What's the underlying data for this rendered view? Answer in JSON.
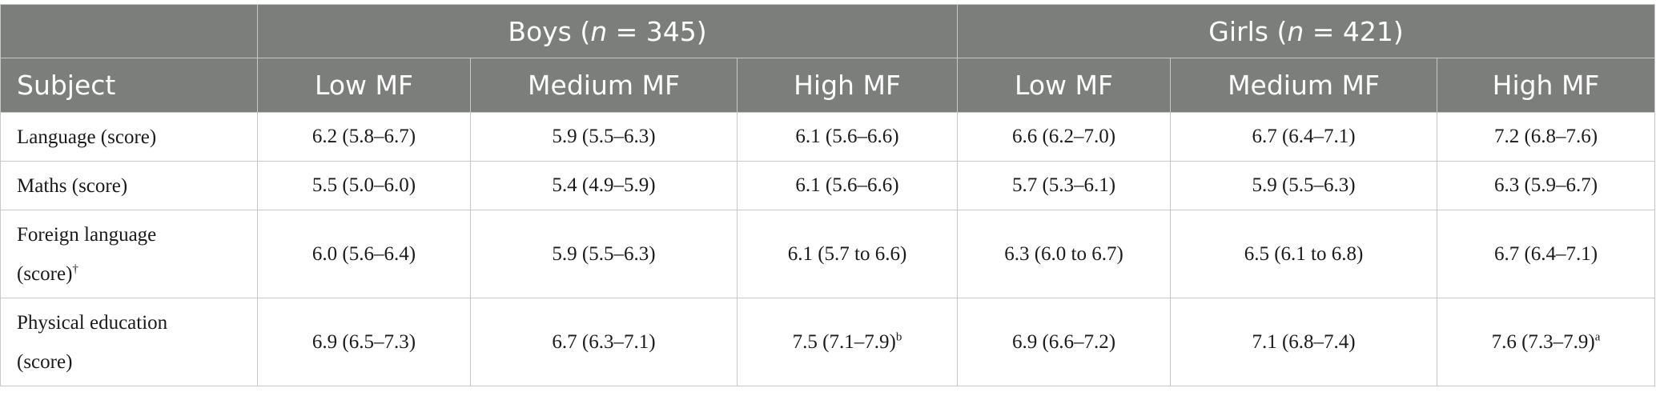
{
  "header": {
    "boys": {
      "prefix": "Boys (",
      "n_symbol": "n",
      "suffix": " = 345)"
    },
    "girls": {
      "prefix": "Girls (",
      "n_symbol": "n",
      "suffix": " = 421)"
    },
    "subject_label": "Subject",
    "columns": [
      "Low MF",
      "Medium MF",
      "High MF",
      "Low MF",
      "Medium MF",
      "High MF"
    ]
  },
  "rows": [
    {
      "subject": "Language (score)",
      "subject_mark": "",
      "cells": [
        {
          "value": "6.2 (5.8–6.7)",
          "mark": ""
        },
        {
          "value": "5.9 (5.5–6.3)",
          "mark": ""
        },
        {
          "value": "6.1 (5.6–6.6)",
          "mark": ""
        },
        {
          "value": "6.6 (6.2–7.0)",
          "mark": ""
        },
        {
          "value": "6.7 (6.4–7.1)",
          "mark": ""
        },
        {
          "value": "7.2 (6.8–7.6)",
          "mark": ""
        }
      ]
    },
    {
      "subject": "Maths (score)",
      "subject_mark": "",
      "cells": [
        {
          "value": "5.5 (5.0–6.0)",
          "mark": ""
        },
        {
          "value": "5.4 (4.9–5.9)",
          "mark": ""
        },
        {
          "value": "6.1 (5.6–6.6)",
          "mark": ""
        },
        {
          "value": "5.7 (5.3–6.1)",
          "mark": ""
        },
        {
          "value": "5.9 (5.5–6.3)",
          "mark": ""
        },
        {
          "value": "6.3 (5.9–6.7)",
          "mark": ""
        }
      ]
    },
    {
      "subject_line1": "Foreign language",
      "subject_line2": "(score)",
      "subject_mark": "†",
      "cells": [
        {
          "value": "6.0 (5.6–6.4)",
          "mark": ""
        },
        {
          "value": "5.9 (5.5–6.3)",
          "mark": ""
        },
        {
          "value": "6.1 (5.7 to 6.6)",
          "mark": ""
        },
        {
          "value": "6.3 (6.0 to 6.7)",
          "mark": ""
        },
        {
          "value": "6.5 (6.1 to 6.8)",
          "mark": ""
        },
        {
          "value": "6.7 (6.4–7.1)",
          "mark": ""
        }
      ]
    },
    {
      "subject_line1": "Physical education",
      "subject_line2": "(score)",
      "subject_mark": "",
      "cells": [
        {
          "value": "6.9 (6.5–7.3)",
          "mark": ""
        },
        {
          "value": "6.7 (6.3–7.1)",
          "mark": ""
        },
        {
          "value": "7.5 (7.1–7.9)",
          "mark": "b"
        },
        {
          "value": "6.9 (6.6–7.2)",
          "mark": ""
        },
        {
          "value": "7.1 (6.8–7.4)",
          "mark": ""
        },
        {
          "value": "7.6 (7.3–7.9)",
          "mark": "a"
        }
      ]
    }
  ]
}
